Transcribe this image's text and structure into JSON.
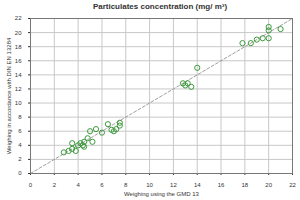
{
  "chart_data": {
    "type": "scatter",
    "title": "Particulates concentration (mg/ m³)",
    "x_label": "Weighing using the GMD 13",
    "y_label": "Weighing in accordance with DIN EN 13284",
    "x": [
      2.8,
      3.2,
      3.5,
      3.5,
      3.8,
      4.0,
      4.2,
      4.4,
      4.5,
      4.5,
      4.8,
      5.0,
      5.2,
      5.5,
      6.0,
      6.5,
      6.8,
      7.0,
      7.2,
      7.5,
      7.5,
      12.8,
      13.0,
      13.2,
      13.5,
      14.0,
      17.8,
      18.5,
      19.0,
      19.5,
      20.0,
      20.0,
      20.0,
      21.0
    ],
    "values": [
      3.0,
      3.2,
      4.3,
      3.5,
      3.2,
      4.0,
      4.3,
      4.0,
      3.8,
      4.5,
      5.0,
      6.0,
      4.5,
      6.3,
      5.8,
      7.0,
      6.2,
      6.0,
      6.3,
      7.2,
      6.8,
      12.8,
      12.5,
      12.8,
      12.3,
      15.0,
      18.5,
      18.5,
      19.0,
      19.2,
      20.3,
      20.8,
      19.2,
      20.5
    ],
    "color": "#3d9a3d",
    "marker": "circle",
    "xlim": [
      0,
      22
    ],
    "ylim": [
      0,
      22
    ],
    "xticks": [
      0,
      2,
      4,
      6,
      8,
      10,
      12,
      14,
      16,
      18,
      20,
      22
    ],
    "yticks": [
      0,
      2,
      4,
      6,
      8,
      10,
      12,
      14,
      16,
      18,
      20,
      22
    ],
    "grid": true
  }
}
